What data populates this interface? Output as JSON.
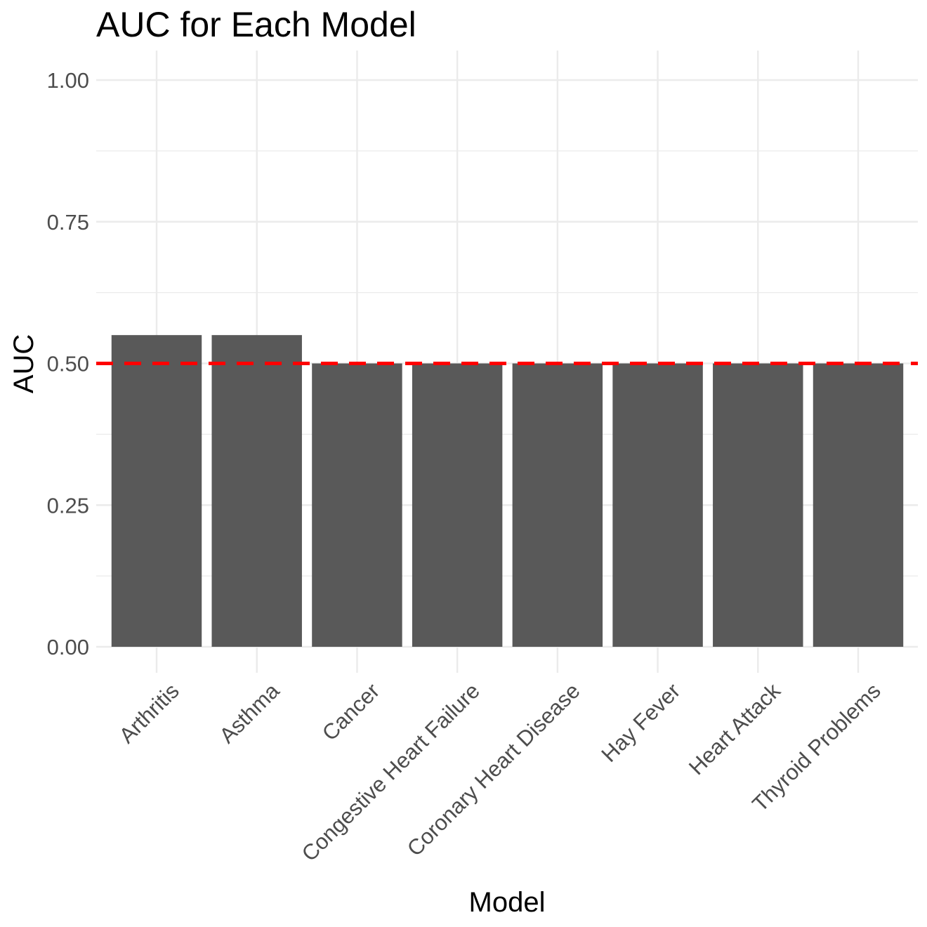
{
  "chart_data": {
    "type": "bar",
    "title": "AUC for Each Model",
    "xlabel": "Model",
    "ylabel": "AUC",
    "categories": [
      "Arthritis",
      "Asthma",
      "Cancer",
      "Congestive Heart Failure",
      "Coronary Heart Disease",
      "Hay Fever",
      "Heart Attack",
      "Thyroid Problems"
    ],
    "values": [
      0.55,
      0.55,
      0.5,
      0.5,
      0.5,
      0.5,
      0.5,
      0.5
    ],
    "ylim": [
      0,
      1
    ],
    "yticks": [
      "0.00",
      "0.25",
      "0.50",
      "0.75",
      "1.00"
    ],
    "grid": true,
    "reference_line": {
      "y": 0.5,
      "style": "dashed",
      "color": "#ff0000"
    },
    "bar_color": "#595959"
  }
}
